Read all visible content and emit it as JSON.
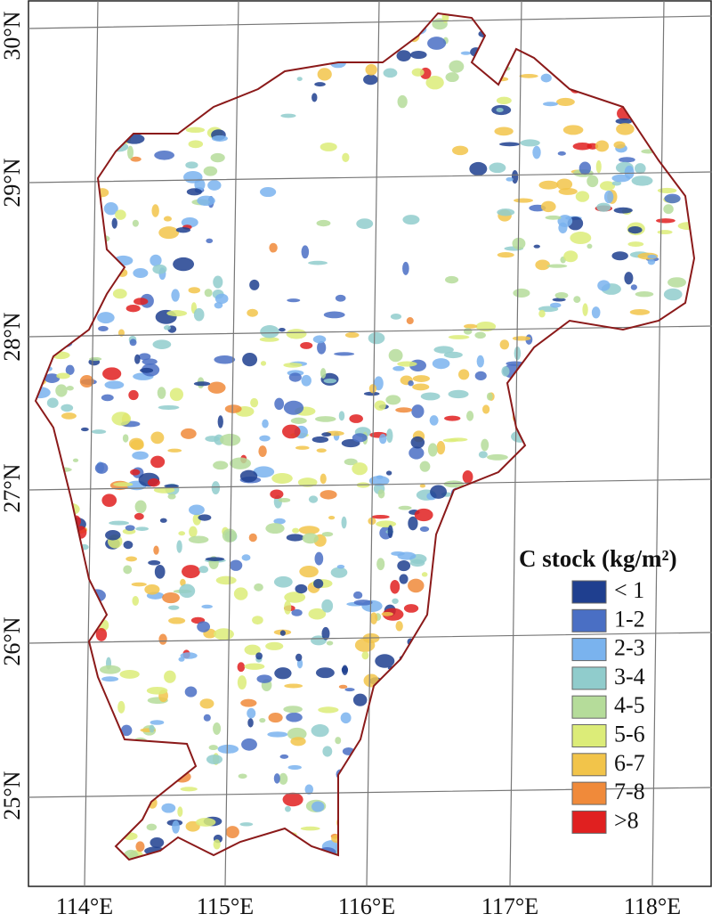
{
  "map": {
    "longitude_labels": [
      "114°E",
      "115°E",
      "116°E",
      "117°E",
      "118°E"
    ],
    "latitude_labels": [
      "30°N",
      "29°N",
      "28°N",
      "27°N",
      "26°N",
      "25°N"
    ],
    "legend": {
      "title": "C stock (kg/m²)",
      "items": [
        {
          "label": "< 1",
          "color": "#1f3f8f"
        },
        {
          "label": "1-2",
          "color": "#4a6fc4"
        },
        {
          "label": "2-3",
          "color": "#7ab3ee"
        },
        {
          "label": "3-4",
          "color": "#90cccc"
        },
        {
          "label": "4-5",
          "color": "#b5dc9a"
        },
        {
          "label": "5-6",
          "color": "#dcec78"
        },
        {
          "label": "6-7",
          "color": "#f2c44a"
        },
        {
          "label": "7-8",
          "color": "#f08a3a"
        },
        {
          "label": ">8",
          "color": "#e02020"
        }
      ]
    }
  }
}
